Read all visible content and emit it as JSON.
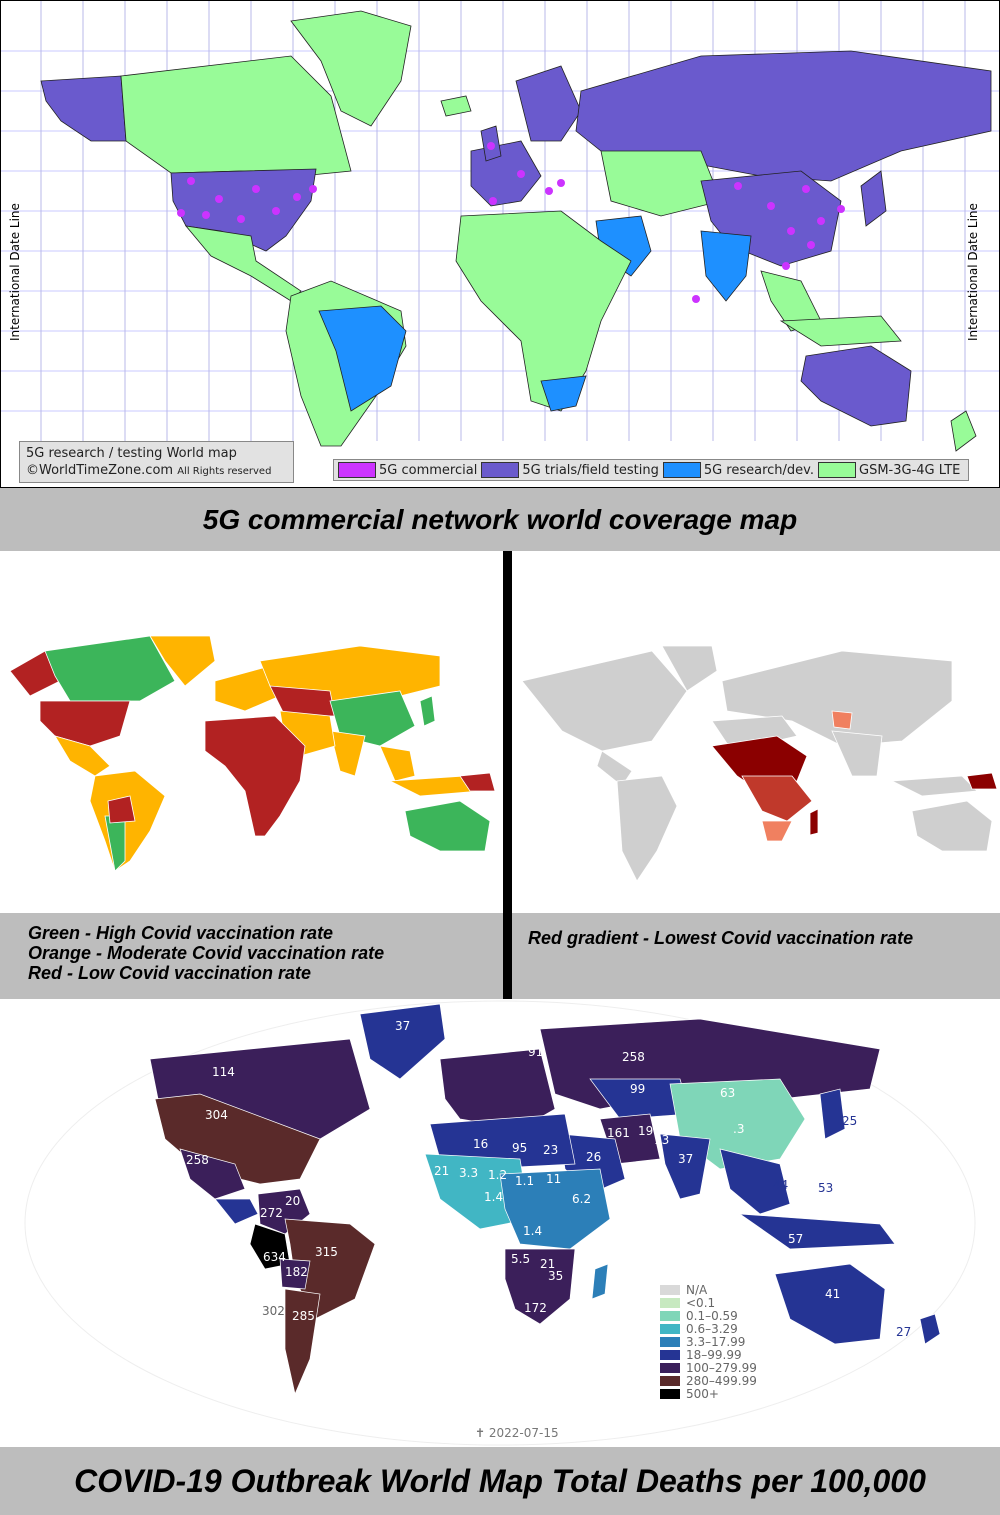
{
  "map_5g": {
    "credit_line1": "5G research / testing World map",
    "credit_line2": "©WorldTimeZone.com",
    "credit_line2_small": "All Rights reserved",
    "idl_left": "International Date Line",
    "idl_right": "International Date Line",
    "legend": [
      {
        "label": "5G commercial",
        "color": "#cc33ff"
      },
      {
        "label": "5G trials/field testing",
        "color": "#6a5acd"
      },
      {
        "label": "5G research/dev.",
        "color": "#1e90ff"
      },
      {
        "label": "GSM-3G-4G LTE",
        "color": "#98fb98"
      }
    ],
    "caption": "5G commercial network world coverage map"
  },
  "vaccination_map": {
    "caption_lines": [
      "Green - High Covid vaccination rate",
      "Orange - Moderate Covid vaccination rate",
      "Red - Low Covid vaccination rate"
    ],
    "colors": {
      "high": "#3cb55a",
      "moderate": "#ffb400",
      "low": "#b22222"
    }
  },
  "lowest_vaccination_map": {
    "caption": "Red gradient - Lowest Covid vaccination rate",
    "colors": {
      "base": "#cfcfcf",
      "dark": "#8b0000",
      "mid": "#c0392b",
      "light": "#f08060"
    }
  },
  "covid_deaths_map": {
    "caption": "COVID-19 Outbreak World Map Total Deaths per 100,000",
    "date": "✝ 2022-07-15",
    "legend": [
      {
        "label": "N/A",
        "color": "#d9d9d9"
      },
      {
        "label": "<0.1",
        "color": "#c7e9c0"
      },
      {
        "label": "0.1–0.59",
        "color": "#7fd6b8"
      },
      {
        "label": "0.6–3.29",
        "color": "#41b6c4"
      },
      {
        "label": "3.3–17.99",
        "color": "#2c7fb8"
      },
      {
        "label": "18–99.99",
        "color": "#253494"
      },
      {
        "label": "100–279.99",
        "color": "#3b1f5a"
      },
      {
        "label": "280–499.99",
        "color": "#5a2a2a"
      },
      {
        "label": "500+",
        "color": "#000000"
      }
    ],
    "labels": [
      {
        "text": "37"
      },
      {
        "text": "114"
      },
      {
        "text": "304"
      },
      {
        "text": "258"
      },
      {
        "text": "258"
      },
      {
        "text": "99"
      },
      {
        "text": "63"
      },
      {
        "text": "91"
      },
      {
        "text": "161"
      },
      {
        "text": "95"
      },
      {
        "text": "23"
      },
      {
        "text": "26"
      },
      {
        "text": "16"
      },
      {
        "text": "21"
      },
      {
        "text": "3.3"
      },
      {
        "text": "1.2"
      },
      {
        "text": "1.1"
      },
      {
        "text": "11"
      },
      {
        "text": "1.4"
      },
      {
        "text": "6.2"
      },
      {
        "text": "1.4"
      },
      {
        "text": "5.5"
      },
      {
        "text": "21"
      },
      {
        "text": "35"
      },
      {
        "text": "172"
      },
      {
        "text": "37"
      },
      {
        "text": "19"
      },
      {
        "text": "13"
      },
      {
        "text": ".3"
      },
      {
        "text": "25"
      },
      {
        "text": "272"
      },
      {
        "text": "20"
      },
      {
        "text": "315"
      },
      {
        "text": "182"
      },
      {
        "text": "285"
      },
      {
        "text": "302"
      },
      {
        "text": "634"
      },
      {
        "text": "41"
      },
      {
        "text": "27"
      },
      {
        "text": "57"
      },
      {
        "text": "53"
      },
      {
        "text": "44"
      }
    ]
  }
}
